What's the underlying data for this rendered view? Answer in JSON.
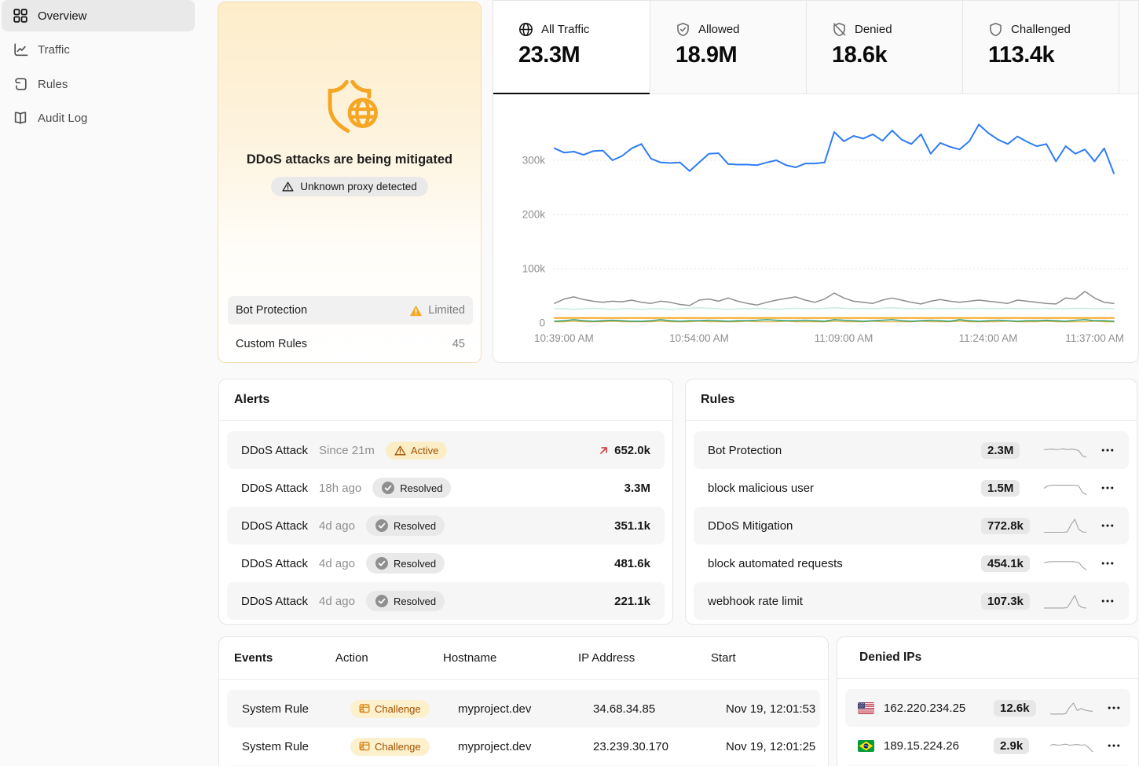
{
  "sidebar": {
    "items": [
      {
        "label": "Overview",
        "icon": "grid",
        "active": true
      },
      {
        "label": "Traffic",
        "icon": "chart",
        "active": false
      },
      {
        "label": "Rules",
        "icon": "scroll",
        "active": false
      },
      {
        "label": "Audit Log",
        "icon": "book",
        "active": false
      }
    ]
  },
  "mitigation_card": {
    "title": "DDoS attacks are being mitigated",
    "badge": "Unknown proxy detected",
    "rows": [
      {
        "label": "Bot Protection",
        "value": "Limited",
        "warning": true,
        "highlight": true
      },
      {
        "label": "Custom Rules",
        "value": "45",
        "warning": false,
        "highlight": false
      }
    ]
  },
  "tabs": [
    {
      "label": "All Traffic",
      "icon": "globe",
      "value": "23.3M",
      "active": true
    },
    {
      "label": "Allowed",
      "icon": "shield-check",
      "value": "18.9M",
      "active": false
    },
    {
      "label": "Denied",
      "icon": "shield-off",
      "value": "18.6k",
      "active": false
    },
    {
      "label": "Challenged",
      "icon": "shield",
      "value": "113.4k",
      "active": false
    }
  ],
  "chart_data": {
    "type": "line",
    "title": "",
    "xlabel": "",
    "ylabel": "",
    "x_ticks": [
      "10:39:00 AM",
      "10:54:00 AM",
      "11:09:00 AM",
      "11:24:00 AM",
      "11:37:00 AM"
    ],
    "y_ticks": [
      {
        "label": "0",
        "value": 0
      },
      {
        "label": "100k",
        "value": 100
      },
      {
        "label": "200k",
        "value": 200
      },
      {
        "label": "300k",
        "value": 300
      }
    ],
    "y_unit": "thousands of requests per minute",
    "ylim": [
      0,
      390
    ],
    "grid": true,
    "legend_position": "none",
    "series": [
      {
        "name": "all-traffic",
        "color": "#2e7cf6",
        "width": 2,
        "values": [
          322,
          314,
          316,
          310,
          317,
          318,
          300,
          308,
          322,
          330,
          303,
          296,
          295,
          296,
          280,
          296,
          312,
          313,
          293,
          292,
          292,
          291,
          296,
          300,
          291,
          287,
          294,
          294,
          296,
          352,
          335,
          345,
          340,
          348,
          336,
          355,
          338,
          330,
          348,
          312,
          332,
          325,
          320,
          335,
          366,
          350,
          338,
          330,
          344,
          334,
          326,
          330,
          298,
          326,
          312,
          320,
          298,
          322,
          276
        ]
      },
      {
        "name": "series-gray",
        "color": "#8d8d8d",
        "width": 1.5,
        "values": [
          36,
          44,
          48,
          43,
          40,
          38,
          40,
          39,
          42,
          38,
          36,
          40,
          38,
          34,
          32,
          42,
          44,
          40,
          46,
          40,
          36,
          33,
          38,
          42,
          45,
          48,
          42,
          38,
          44,
          55,
          46,
          40,
          38,
          36,
          42,
          46,
          42,
          38,
          35,
          40,
          43,
          40,
          38,
          40,
          42,
          40,
          38,
          36,
          42,
          40,
          38,
          36,
          35,
          46,
          44,
          58,
          46,
          38,
          36
        ]
      },
      {
        "name": "series-mint",
        "color": "#cdeee3",
        "width": 1.6,
        "values": [
          26,
          26,
          25,
          26,
          27,
          26,
          25,
          26,
          26,
          25,
          26,
          26,
          25,
          26,
          27,
          28,
          27,
          26,
          25,
          26,
          26,
          27,
          26,
          25,
          26,
          27,
          26,
          26,
          27,
          28,
          27,
          26,
          27,
          26,
          27,
          28,
          27,
          26,
          26,
          27,
          26,
          26,
          27,
          26,
          27,
          26,
          26,
          27,
          26,
          26,
          26,
          27,
          26,
          26,
          27,
          27,
          26,
          26,
          26
        ]
      },
      {
        "name": "series-orange",
        "color": "#f5a623",
        "width": 2,
        "values": [
          9,
          9,
          9,
          9,
          9,
          9,
          9,
          9,
          9,
          9,
          9,
          9,
          9,
          9,
          9,
          9,
          9,
          9,
          9,
          9,
          9,
          9,
          9,
          9,
          9,
          9,
          9,
          9,
          9,
          9,
          9,
          9,
          9,
          9,
          9,
          9,
          9,
          9,
          9,
          9,
          9,
          9,
          9,
          9,
          9,
          9,
          9,
          9,
          9,
          9,
          9,
          9,
          9,
          9,
          9,
          9,
          9,
          9,
          9
        ]
      },
      {
        "name": "series-amber",
        "color": "#dfb23c",
        "width": 1.3,
        "values": [
          2,
          2,
          3,
          2,
          2,
          2,
          3,
          2,
          2,
          2,
          2,
          3,
          2,
          2,
          2,
          3,
          2,
          2,
          2,
          2,
          3,
          2,
          2,
          2,
          3,
          2,
          2,
          2,
          2,
          3,
          2,
          2,
          2,
          3,
          2,
          2,
          2,
          2,
          3,
          2,
          2,
          2,
          3,
          2,
          2,
          2,
          2,
          3,
          2,
          2,
          2,
          3,
          2,
          2,
          2,
          2,
          3,
          2,
          2
        ]
      },
      {
        "name": "series-green",
        "color": "#2f9e77",
        "width": 1.5,
        "values": [
          3,
          4,
          6,
          4,
          3,
          4,
          5,
          4,
          3,
          3,
          4,
          6,
          4,
          3,
          4,
          4,
          5,
          4,
          3,
          4,
          4,
          5,
          6,
          5,
          4,
          4,
          5,
          4,
          3,
          6,
          5,
          4,
          3,
          4,
          5,
          6,
          4,
          3,
          4,
          5,
          4,
          3,
          6,
          4,
          3,
          4,
          5,
          4,
          3,
          4,
          4,
          5,
          4,
          3,
          5,
          6,
          4,
          4,
          3
        ]
      }
    ]
  },
  "alerts": {
    "title": "Alerts",
    "rows": [
      {
        "name": "DDoS Attack",
        "time": "Since 21m",
        "status": "Active",
        "value": "652.0k",
        "trend_up": true,
        "highlight": true
      },
      {
        "name": "DDoS Attack",
        "time": "18h ago",
        "status": "Resolved",
        "value": "3.3M",
        "trend_up": false,
        "highlight": false
      },
      {
        "name": "DDoS Attack",
        "time": "4d ago",
        "status": "Resolved",
        "value": "351.1k",
        "trend_up": false,
        "highlight": true
      },
      {
        "name": "DDoS Attack",
        "time": "4d ago",
        "status": "Resolved",
        "value": "481.6k",
        "trend_up": false,
        "highlight": false
      },
      {
        "name": "DDoS Attack",
        "time": "4d ago",
        "status": "Resolved",
        "value": "221.1k",
        "trend_up": false,
        "highlight": true
      }
    ]
  },
  "rules": {
    "title": "Rules",
    "rows": [
      {
        "name": "Bot Protection",
        "value": "2.3M",
        "highlight": true,
        "spark": [
          55,
          58,
          60,
          57,
          58,
          62,
          55,
          60,
          57,
          50,
          14,
          6
        ]
      },
      {
        "name": "block malicious user",
        "value": "1.5M",
        "highlight": false,
        "spark": [
          50,
          66,
          70,
          70,
          70,
          70,
          70,
          70,
          70,
          66,
          22,
          6
        ]
      },
      {
        "name": "DDoS Mitigation",
        "value": "772.8k",
        "highlight": true,
        "spark": [
          8,
          8,
          8,
          8,
          8,
          8,
          10,
          58,
          95,
          28,
          10,
          8
        ]
      },
      {
        "name": "block automated requests",
        "value": "454.1k",
        "highlight": false,
        "spark": [
          55,
          62,
          64,
          64,
          64,
          64,
          64,
          64,
          62,
          58,
          28,
          8
        ]
      },
      {
        "name": "webhook rate limit",
        "value": "107.3k",
        "highlight": true,
        "spark": [
          6,
          6,
          6,
          6,
          6,
          6,
          8,
          48,
          90,
          24,
          8,
          6
        ]
      }
    ]
  },
  "events": {
    "title": "Events",
    "columns": [
      "Action",
      "Hostname",
      "IP Address",
      "Start"
    ],
    "rows": [
      {
        "name": "System Rule",
        "action": "Challenge",
        "hostname": "myproject.dev",
        "ip": "34.68.34.85",
        "start": "Nov 19, 12:01:53",
        "highlight": true
      },
      {
        "name": "System Rule",
        "action": "Challenge",
        "hostname": "myproject.dev",
        "ip": "23.239.30.170",
        "start": "Nov 19, 12:01:25",
        "highlight": false
      }
    ]
  },
  "denied_ips": {
    "title": "Denied IPs",
    "rows": [
      {
        "country": "us",
        "ip": "162.220.234.25",
        "value": "12.6k",
        "highlight": true,
        "spark": [
          12,
          10,
          12,
          10,
          14,
          55,
          85,
          35,
          48,
          38,
          32,
          30
        ]
      },
      {
        "country": "br",
        "ip": "189.15.224.26",
        "value": "2.9k",
        "highlight": false,
        "spark": [
          55,
          60,
          55,
          58,
          62,
          55,
          58,
          60,
          55,
          58,
          38,
          10
        ]
      }
    ]
  },
  "colors": {
    "accent_blue": "#2e7cf6",
    "accent_orange": "#f5a623",
    "amber_text": "#a35200",
    "amber_bg": "#fbeec7",
    "red_arrow": "#dc3d43",
    "row_alt": "#f6f6f6",
    "grid_line": "#e4e4e4"
  }
}
